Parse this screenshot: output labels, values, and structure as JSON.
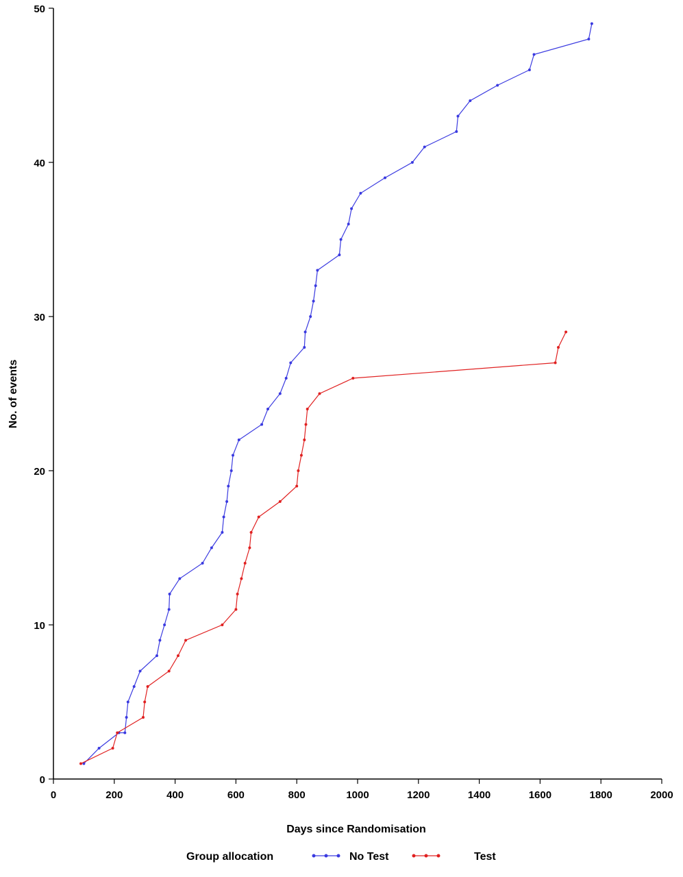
{
  "chart_data": {
    "type": "line",
    "xlabel": "Days since Randomisation",
    "ylabel": "No. of events",
    "xlim": [
      0,
      2000
    ],
    "ylim": [
      0,
      50
    ],
    "x_ticks": [
      0,
      200,
      400,
      600,
      800,
      1000,
      1200,
      1400,
      1600,
      1800,
      2000
    ],
    "y_ticks": [
      0,
      10,
      20,
      30,
      40,
      50
    ],
    "grid": false,
    "legend": {
      "title": "Group allocation",
      "placement": "bottom"
    },
    "series": [
      {
        "name": "No Test",
        "color": "#3a3ae0",
        "points": [
          [
            100,
            1
          ],
          [
            150,
            2
          ],
          [
            215,
            3
          ],
          [
            235,
            3
          ],
          [
            240,
            4
          ],
          [
            245,
            5
          ],
          [
            265,
            6
          ],
          [
            285,
            7
          ],
          [
            340,
            8
          ],
          [
            350,
            9
          ],
          [
            365,
            10
          ],
          [
            380,
            11
          ],
          [
            382,
            12
          ],
          [
            415,
            13
          ],
          [
            490,
            14
          ],
          [
            520,
            15
          ],
          [
            555,
            16
          ],
          [
            560,
            17
          ],
          [
            570,
            18
          ],
          [
            575,
            19
          ],
          [
            585,
            20
          ],
          [
            590,
            21
          ],
          [
            610,
            22
          ],
          [
            685,
            23
          ],
          [
            705,
            24
          ],
          [
            745,
            25
          ],
          [
            765,
            26
          ],
          [
            780,
            27
          ],
          [
            825,
            28
          ],
          [
            828,
            29
          ],
          [
            845,
            30
          ],
          [
            855,
            31
          ],
          [
            862,
            32
          ],
          [
            868,
            33
          ],
          [
            940,
            34
          ],
          [
            945,
            35
          ],
          [
            970,
            36
          ],
          [
            980,
            37
          ],
          [
            1010,
            38
          ],
          [
            1090,
            39
          ],
          [
            1180,
            40
          ],
          [
            1220,
            41
          ],
          [
            1325,
            42
          ],
          [
            1330,
            43
          ],
          [
            1370,
            44
          ],
          [
            1460,
            45
          ],
          [
            1565,
            46
          ],
          [
            1580,
            47
          ],
          [
            1760,
            48
          ],
          [
            1770,
            49
          ]
        ]
      },
      {
        "name": "Test",
        "color": "#e02020",
        "points": [
          [
            90,
            1
          ],
          [
            195,
            2
          ],
          [
            210,
            3
          ],
          [
            295,
            4
          ],
          [
            300,
            5
          ],
          [
            310,
            6
          ],
          [
            380,
            7
          ],
          [
            410,
            8
          ],
          [
            435,
            9
          ],
          [
            555,
            10
          ],
          [
            600,
            11
          ],
          [
            605,
            12
          ],
          [
            618,
            13
          ],
          [
            630,
            14
          ],
          [
            645,
            15
          ],
          [
            650,
            16
          ],
          [
            675,
            17
          ],
          [
            745,
            18
          ],
          [
            800,
            19
          ],
          [
            805,
            20
          ],
          [
            815,
            21
          ],
          [
            825,
            22
          ],
          [
            830,
            23
          ],
          [
            835,
            24
          ],
          [
            875,
            25
          ],
          [
            985,
            26
          ],
          [
            1650,
            27
          ],
          [
            1660,
            28
          ],
          [
            1685,
            29
          ]
        ]
      }
    ]
  }
}
